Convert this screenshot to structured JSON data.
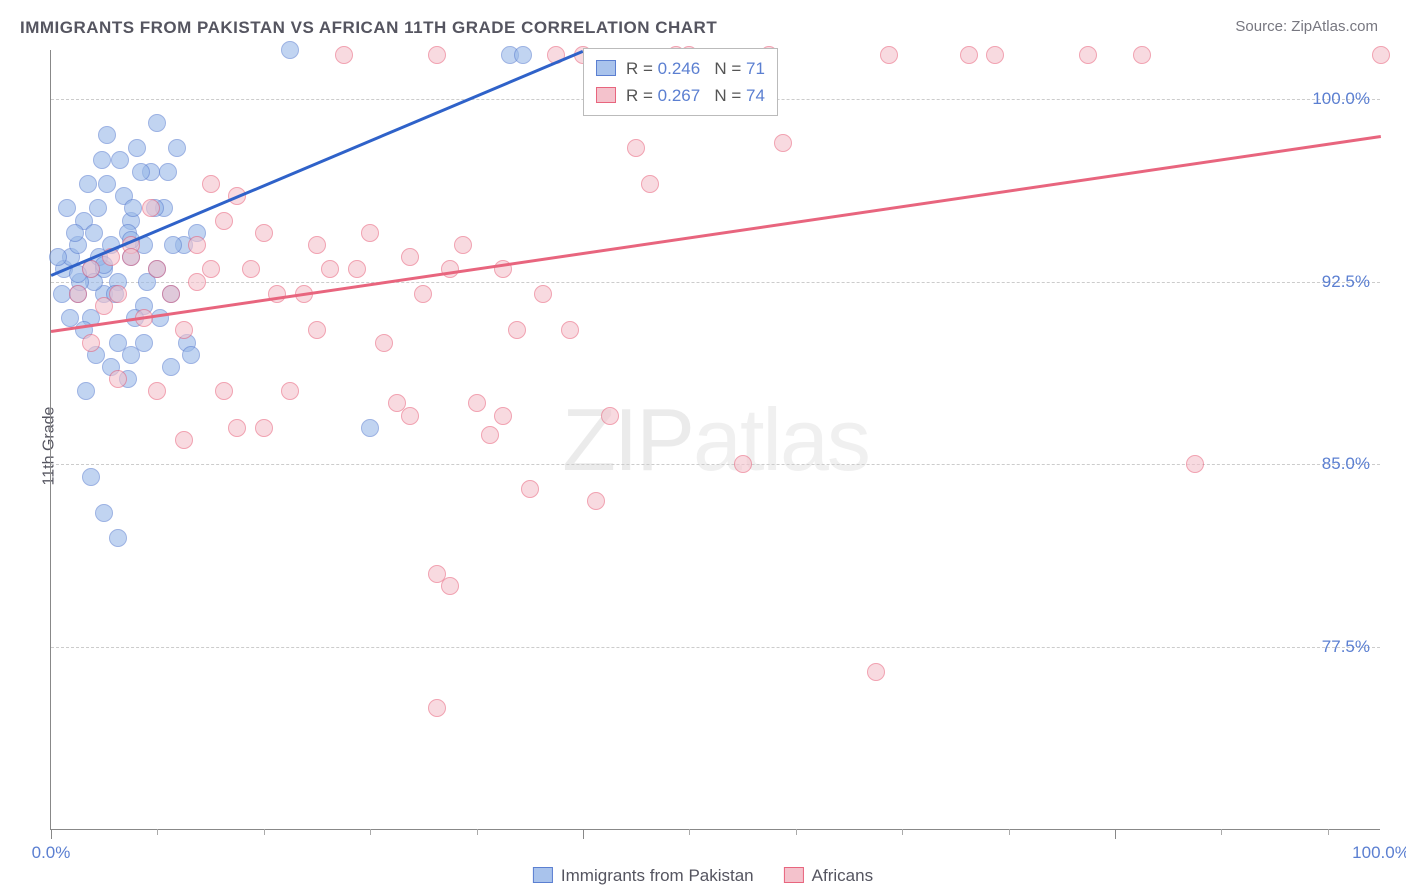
{
  "title": "IMMIGRANTS FROM PAKISTAN VS AFRICAN 11TH GRADE CORRELATION CHART",
  "source_prefix": "Source: ",
  "source_name": "ZipAtlas.com",
  "ylabel": "11th Grade",
  "watermark_a": "ZIP",
  "watermark_b": "atlas",
  "chart": {
    "type": "scatter",
    "xlim": [
      0,
      100
    ],
    "ylim": [
      70,
      102
    ],
    "y_ticks": [
      77.5,
      85.0,
      92.5,
      100.0
    ],
    "y_tick_labels": [
      "77.5%",
      "85.0%",
      "92.5%",
      "100.0%"
    ],
    "x_ticks_major": [
      0,
      40,
      80
    ],
    "x_ticks_minor": [
      8,
      16,
      24,
      32,
      48,
      56,
      64,
      72,
      88,
      96
    ],
    "x_tick_labels": [
      {
        "x": 0,
        "label": "0.0%"
      },
      {
        "x": 100,
        "label": "100.0%"
      }
    ],
    "background_color": "#ffffff",
    "grid_color": "#cccccc",
    "marker_radius": 9,
    "series": [
      {
        "id": "a",
        "name": "Immigrants from Pakistan",
        "fill": "#99b9e8",
        "stroke": "#5b7fd1",
        "R": "0.246",
        "N": "71",
        "trend": {
          "x1": 0,
          "y1": 92.8,
          "x2": 40,
          "y2": 102.0,
          "color": "#2f62c9"
        },
        "points": [
          [
            1,
            93
          ],
          [
            1.5,
            93.5
          ],
          [
            2,
            92
          ],
          [
            2,
            94
          ],
          [
            2.5,
            95
          ],
          [
            3,
            91
          ],
          [
            3,
            93
          ],
          [
            3.2,
            94.5
          ],
          [
            3.5,
            95.5
          ],
          [
            4,
            92
          ],
          [
            4,
            93
          ],
          [
            4.2,
            96.5
          ],
          [
            4.5,
            94
          ],
          [
            5,
            90
          ],
          [
            5,
            92.5
          ],
          [
            5.5,
            96
          ],
          [
            6,
            93.5
          ],
          [
            6,
            95
          ],
          [
            6.5,
            98
          ],
          [
            7,
            91.5
          ],
          [
            7,
            94
          ],
          [
            7.5,
            97
          ],
          [
            8,
            93
          ],
          [
            8,
            99
          ],
          [
            8.5,
            95.5
          ],
          [
            9,
            89
          ],
          [
            9,
            92
          ],
          [
            9.5,
            98
          ],
          [
            10,
            94
          ],
          [
            10.2,
            90
          ],
          [
            3,
            84.5
          ],
          [
            4,
            83
          ],
          [
            5,
            82
          ],
          [
            6,
            89.5
          ],
          [
            7,
            90
          ],
          [
            4.5,
            89
          ],
          [
            2.5,
            90.5
          ],
          [
            1.8,
            94.5
          ],
          [
            3.8,
            97.5
          ],
          [
            5.8,
            94.5
          ],
          [
            6.3,
            91
          ],
          [
            8.8,
            97
          ],
          [
            0.8,
            92
          ],
          [
            1.2,
            95.5
          ],
          [
            2.8,
            96.5
          ],
          [
            3.2,
            92.5
          ],
          [
            4.8,
            92
          ],
          [
            6.8,
            97
          ],
          [
            7.8,
            95.5
          ],
          [
            9.2,
            94
          ],
          [
            10.5,
            89.5
          ],
          [
            11,
            94.5
          ],
          [
            18,
            102
          ],
          [
            34.5,
            101.8
          ],
          [
            35.5,
            101.8
          ],
          [
            5.2,
            97.5
          ],
          [
            4.2,
            98.5
          ],
          [
            3.6,
            93.5
          ],
          [
            2.2,
            92.5
          ],
          [
            1.4,
            91
          ],
          [
            0.5,
            93.5
          ],
          [
            6.2,
            95.5
          ],
          [
            7.2,
            92.5
          ],
          [
            8.2,
            91
          ],
          [
            2.6,
            88
          ],
          [
            3.4,
            89.5
          ],
          [
            5.8,
            88.5
          ],
          [
            24,
            86.5
          ],
          [
            2,
            92.8
          ],
          [
            4,
            93.2
          ],
          [
            6,
            94.2
          ]
        ]
      },
      {
        "id": "b",
        "name": "Africans",
        "fill": "#f4c2cc",
        "stroke": "#e8657e",
        "R": "0.267",
        "N": "74",
        "trend": {
          "x1": 0,
          "y1": 90.5,
          "x2": 100,
          "y2": 98.5,
          "color": "#e8657e"
        },
        "points": [
          [
            2,
            92
          ],
          [
            3,
            93
          ],
          [
            4,
            91.5
          ],
          [
            4.5,
            93.5
          ],
          [
            5,
            92
          ],
          [
            6,
            94
          ],
          [
            7,
            91
          ],
          [
            7.5,
            95.5
          ],
          [
            8,
            93
          ],
          [
            9,
            92
          ],
          [
            10,
            90.5
          ],
          [
            11,
            94
          ],
          [
            12,
            93
          ],
          [
            13,
            95
          ],
          [
            14,
            96
          ],
          [
            15,
            93
          ],
          [
            16,
            94.5
          ],
          [
            17,
            92
          ],
          [
            18,
            88
          ],
          [
            5,
            88.5
          ],
          [
            8,
            88
          ],
          [
            13,
            88
          ],
          [
            10,
            86
          ],
          [
            14,
            86.5
          ],
          [
            19,
            92
          ],
          [
            20,
            94
          ],
          [
            21,
            93
          ],
          [
            22,
            101.8
          ],
          [
            23,
            93
          ],
          [
            24,
            94.5
          ],
          [
            25,
            90
          ],
          [
            26,
            87.5
          ],
          [
            27,
            87
          ],
          [
            28,
            92
          ],
          [
            29,
            101.8
          ],
          [
            30,
            93
          ],
          [
            31,
            94
          ],
          [
            32,
            87.5
          ],
          [
            33,
            86.2
          ],
          [
            34,
            87
          ],
          [
            35,
            90.5
          ],
          [
            36,
            84
          ],
          [
            37,
            92
          ],
          [
            38,
            101.8
          ],
          [
            39,
            90.5
          ],
          [
            40,
            101.8
          ],
          [
            41,
            83.5
          ],
          [
            42,
            87
          ],
          [
            44,
            98
          ],
          [
            45,
            96.5
          ],
          [
            47,
            101.8
          ],
          [
            48,
            101.8
          ],
          [
            52,
            85
          ],
          [
            54,
            101.8
          ],
          [
            55,
            98.2
          ],
          [
            62,
            76.5
          ],
          [
            63,
            101.8
          ],
          [
            69,
            101.8
          ],
          [
            71,
            101.8
          ],
          [
            78,
            101.8
          ],
          [
            82,
            101.8
          ],
          [
            86,
            85
          ],
          [
            100,
            101.8
          ],
          [
            29,
            75
          ],
          [
            30,
            80
          ],
          [
            29,
            80.5
          ],
          [
            6,
            93.5
          ],
          [
            11,
            92.5
          ],
          [
            16,
            86.5
          ],
          [
            20,
            90.5
          ],
          [
            12,
            96.5
          ],
          [
            3,
            90
          ],
          [
            34,
            93
          ],
          [
            27,
            93.5
          ]
        ]
      }
    ]
  },
  "statbox": {
    "R_label": "R =",
    "N_label": "N ="
  }
}
